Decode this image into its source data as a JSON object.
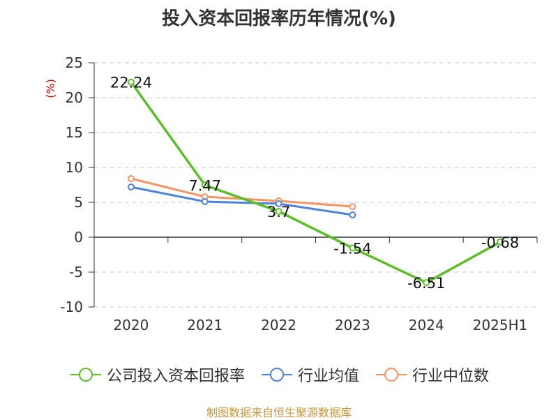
{
  "title": "投入资本回报率历年情况(%)",
  "source": "制图数据来自恒生聚源数据库",
  "colors": {
    "company": "#5cbf28",
    "industry_avg": "#4f83d9",
    "industry_median": "#f59462",
    "ylabel": "#cc0000",
    "axis": "#333333",
    "grid": "#c8c8c8"
  },
  "chart_data": {
    "type": "line",
    "ylabel": "(%)",
    "ylim": [
      -10,
      25
    ],
    "yticks": [
      -10,
      -5,
      0,
      5,
      10,
      15,
      20,
      25
    ],
    "categories": [
      "2020",
      "2021",
      "2022",
      "2023",
      "2024",
      "2025H1"
    ],
    "grid": true,
    "legend_position": "bottom",
    "series": [
      {
        "name": "公司投入资本回报率",
        "values": [
          22.24,
          7.47,
          3.7,
          -1.54,
          -6.51,
          -0.68
        ],
        "labels": [
          "22.24",
          "7.47",
          "3.7",
          "-1.54",
          "-6.51",
          "-0.68"
        ]
      },
      {
        "name": "行业均值",
        "values": [
          7.2,
          5.1,
          4.8,
          3.2,
          null,
          null
        ]
      },
      {
        "name": "行业中位数",
        "values": [
          8.4,
          5.8,
          5.2,
          4.4,
          null,
          null
        ]
      }
    ]
  }
}
